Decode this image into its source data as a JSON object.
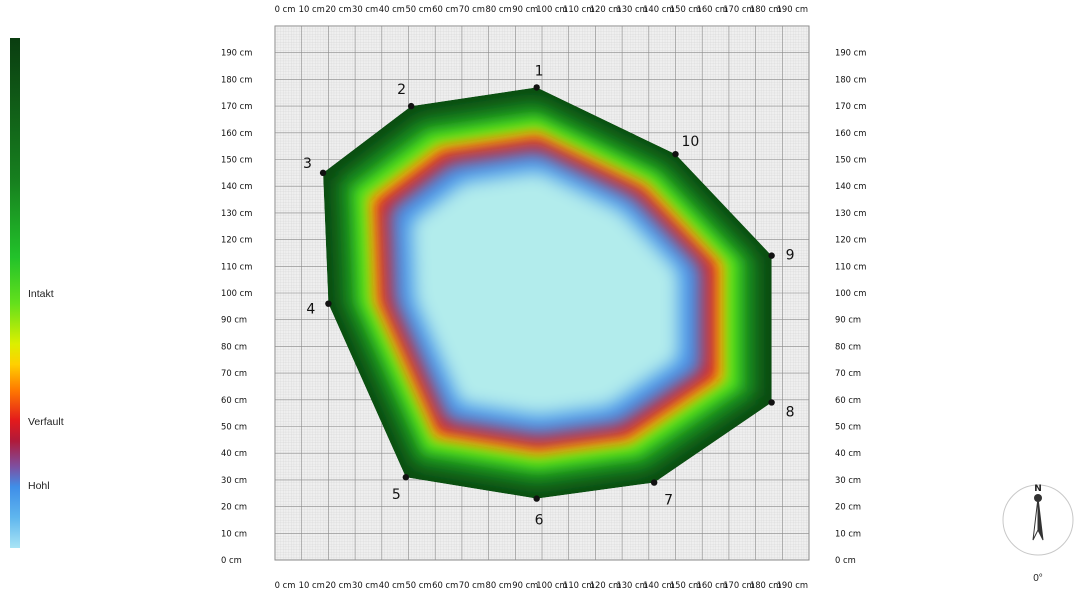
{
  "legend": {
    "labels": [
      "Intakt",
      "Verfault",
      "Hohl"
    ],
    "stops": [
      "#0a3d10",
      "#17801f",
      "#22c22a",
      "#63e01c",
      "#dcef00",
      "#ffd000",
      "#ff7a00",
      "#e31a1c",
      "#7e4fa0",
      "#3f8ee8",
      "#a9e4f5"
    ]
  },
  "compass": {
    "north": "N",
    "degrees": "0°"
  },
  "chart_data": {
    "type": "heatmap",
    "unit": "cm",
    "xlim": [
      0,
      200
    ],
    "ylim": [
      0,
      200
    ],
    "x_ticks": [
      "0 cm",
      "10 cm",
      "20 cm",
      "30 cm",
      "40 cm",
      "50 cm",
      "60 cm",
      "70 cm",
      "80 cm",
      "90 cm",
      "100 cm",
      "110 cm",
      "120 cm",
      "130 cm",
      "140 cm",
      "150 cm",
      "160 cm",
      "170 cm",
      "180 cm",
      "190 cm"
    ],
    "y_ticks": [
      "0 cm",
      "10 cm",
      "20 cm",
      "30 cm",
      "40 cm",
      "50 cm",
      "60 cm",
      "70 cm",
      "80 cm",
      "90 cm",
      "100 cm",
      "110 cm",
      "120 cm",
      "130 cm",
      "140 cm",
      "150 cm",
      "160 cm",
      "170 cm",
      "180 cm",
      "190 cm"
    ],
    "grid": true,
    "measurement_points": [
      {
        "label": "1",
        "x": 98,
        "y": 177
      },
      {
        "label": "2",
        "x": 51,
        "y": 170
      },
      {
        "label": "3",
        "x": 18,
        "y": 145
      },
      {
        "label": "4",
        "x": 20,
        "y": 96
      },
      {
        "label": "5",
        "x": 49,
        "y": 31
      },
      {
        "label": "6",
        "x": 98,
        "y": 23
      },
      {
        "label": "7",
        "x": 142,
        "y": 29
      },
      {
        "label": "8",
        "x": 186,
        "y": 59
      },
      {
        "label": "9",
        "x": 186,
        "y": 114
      },
      {
        "label": "10",
        "x": 150,
        "y": 152
      }
    ],
    "color_scale": [
      "Intakt",
      "Verfault",
      "Hohl"
    ]
  }
}
